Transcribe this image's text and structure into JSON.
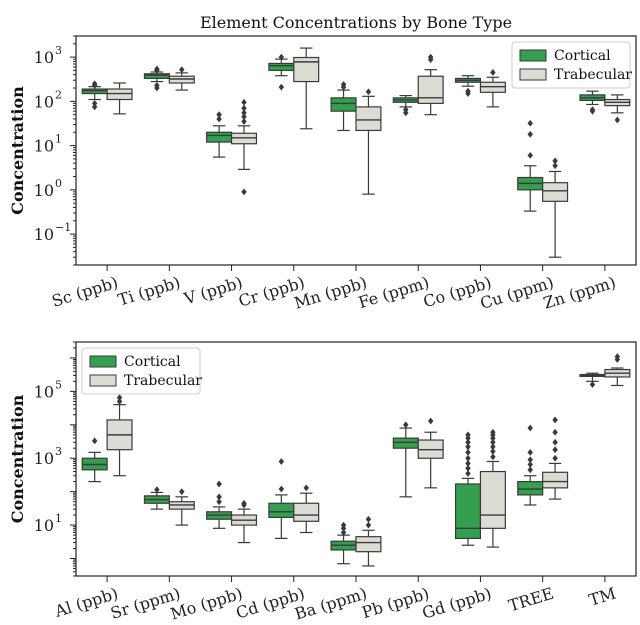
{
  "colors": {
    "cortical": "#34a04f",
    "trabecular": "#dcdcd5",
    "line": "#3a3a3a",
    "frame": "#222222"
  },
  "chart_data": [
    {
      "type": "box",
      "title": "Element Concentrations by Bone Type",
      "xlabel": "",
      "ylabel": "Concentration",
      "yscale": "log",
      "ylim": [
        0.02,
        3000
      ],
      "yticks": [
        {
          "value": 0.1,
          "base": "10",
          "exp": "−1"
        },
        {
          "value": 1,
          "base": "10",
          "exp": "0"
        },
        {
          "value": 10,
          "base": "10",
          "exp": "1"
        },
        {
          "value": 100,
          "base": "10",
          "exp": "2"
        },
        {
          "value": 1000,
          "base": "10",
          "exp": "3"
        }
      ],
      "legend": {
        "position": "top-right",
        "entries": [
          "Cortical",
          "Trabecular"
        ]
      },
      "categories": [
        "Sc (ppb)",
        "Ti (ppb)",
        "V (ppb)",
        "Cr (ppb)",
        "Mn (ppb)",
        "Fe (ppm)",
        "Co (ppb)",
        "Cu (ppm)",
        "Zn (ppm)"
      ],
      "series": [
        {
          "name": "Cortical",
          "boxes": [
            {
              "whislo": 110,
              "q1": 150,
              "med": 175,
              "q3": 190,
              "whishi": 215,
              "fliers": [
                75,
                90,
                230,
                250
              ]
            },
            {
              "whislo": 280,
              "q1": 330,
              "med": 390,
              "q3": 420,
              "whishi": 460,
              "fliers": [
                200,
                230,
                500,
                540
              ]
            },
            {
              "whislo": 5.5,
              "q1": 12,
              "med": 17,
              "q3": 20,
              "whishi": 28,
              "fliers": [
                40,
                50
              ]
            },
            {
              "whislo": 380,
              "q1": 500,
              "med": 640,
              "q3": 720,
              "whishi": 900,
              "fliers": [
                210,
                1000
              ]
            },
            {
              "whislo": 22,
              "q1": 60,
              "med": 90,
              "q3": 120,
              "whishi": 180,
              "fliers": [
                210,
                240
              ]
            },
            {
              "whislo": 75,
              "q1": 95,
              "med": 107,
              "q3": 120,
              "whishi": 135,
              "fliers": [
                55,
                65
              ]
            },
            {
              "whislo": 220,
              "q1": 270,
              "med": 300,
              "q3": 330,
              "whishi": 380,
              "fliers": [
                150,
                170
              ]
            },
            {
              "whislo": 0.33,
              "q1": 1.0,
              "med": 1.4,
              "q3": 1.9,
              "whishi": 3.5,
              "fliers": [
                6,
                18,
                32
              ]
            },
            {
              "whislo": 85,
              "q1": 105,
              "med": 120,
              "q3": 140,
              "whishi": 170,
              "fliers": [
                60,
                65
              ]
            }
          ]
        },
        {
          "name": "Trabecular",
          "boxes": [
            {
              "whislo": 52,
              "q1": 110,
              "med": 150,
              "q3": 190,
              "whishi": 260,
              "fliers": []
            },
            {
              "whislo": 180,
              "q1": 260,
              "med": 320,
              "q3": 370,
              "whishi": 440,
              "fliers": [
                520
              ]
            },
            {
              "whislo": 2.9,
              "q1": 11,
              "med": 15,
              "q3": 19,
              "whishi": 28,
              "fliers": [
                0.9,
                35,
                45,
                55,
                70,
                95
              ]
            },
            {
              "whislo": 24,
              "q1": 280,
              "med": 780,
              "q3": 980,
              "whishi": 1600,
              "fliers": []
            },
            {
              "whislo": 0.8,
              "q1": 22,
              "med": 38,
              "q3": 75,
              "whishi": 130,
              "fliers": [
                165
              ]
            },
            {
              "whislo": 50,
              "q1": 90,
              "med": 120,
              "q3": 370,
              "whishi": 520,
              "fliers": [
                880,
                1000
              ]
            },
            {
              "whislo": 75,
              "q1": 160,
              "med": 215,
              "q3": 270,
              "whishi": 350,
              "fliers": [
                450
              ]
            },
            {
              "whislo": 0.03,
              "q1": 0.55,
              "med": 0.95,
              "q3": 1.45,
              "whishi": 2.6,
              "fliers": [
                3.5,
                4.5
              ]
            },
            {
              "whislo": 55,
              "q1": 80,
              "med": 95,
              "q3": 110,
              "whishi": 140,
              "fliers": [
                38
              ]
            }
          ]
        }
      ]
    },
    {
      "type": "box",
      "title": "",
      "xlabel": "",
      "ylabel": "Concentration",
      "yscale": "log",
      "ylim": [
        0.3,
        3000000
      ],
      "yticks": [
        {
          "value": 10,
          "base": "10",
          "exp": "1"
        },
        {
          "value": 1000,
          "base": "10",
          "exp": "3"
        },
        {
          "value": 100000,
          "base": "10",
          "exp": "5"
        }
      ],
      "legend": {
        "position": "top-left",
        "entries": [
          "Cortical",
          "Trabecular"
        ]
      },
      "categories": [
        "Al (ppb)",
        "Sr (ppm)",
        "Mo (ppb)",
        "Cd (ppb)",
        "Ba (ppm)",
        "Pb (ppb)",
        "Gd (ppb)",
        "TREE",
        "TM"
      ],
      "series": [
        {
          "name": "Cortical",
          "boxes": [
            {
              "whislo": 200,
              "q1": 450,
              "med": 650,
              "q3": 1000,
              "whishi": 1500,
              "fliers": [
                3300
              ]
            },
            {
              "whislo": 30,
              "q1": 45,
              "med": 58,
              "q3": 75,
              "whishi": 95,
              "fliers": [
                115
              ]
            },
            {
              "whislo": 8,
              "q1": 15,
              "med": 20,
              "q3": 25,
              "whishi": 35,
              "fliers": [
                50,
                70,
                170
              ]
            },
            {
              "whislo": 4,
              "q1": 17,
              "med": 25,
              "q3": 45,
              "whishi": 80,
              "fliers": [
                120,
                800
              ]
            },
            {
              "whislo": 0.7,
              "q1": 1.8,
              "med": 2.5,
              "q3": 3.3,
              "whishi": 5,
              "fliers": [
                6,
                8,
                10
              ]
            },
            {
              "whislo": 70,
              "q1": 2000,
              "med": 3000,
              "q3": 4000,
              "whishi": 8000,
              "fliers": [
                10000
              ]
            },
            {
              "whislo": 2.5,
              "q1": 4,
              "med": 8,
              "q3": 170,
              "whishi": 250,
              "fliers": [
                350,
                500,
                700,
                1000,
                1500,
                2200,
                3000,
                4000,
                5000
              ]
            },
            {
              "whislo": 40,
              "q1": 80,
              "med": 120,
              "q3": 200,
              "whishi": 300,
              "fliers": [
                450,
                650,
                900,
                1500,
                8000
              ]
            },
            {
              "whislo": 200000,
              "q1": 280000,
              "med": 300000,
              "q3": 320000,
              "whishi": 350000,
              "fliers": [
                160000
              ]
            }
          ]
        },
        {
          "name": "Trabecular",
          "boxes": [
            {
              "whislo": 300,
              "q1": 1800,
              "med": 5000,
              "q3": 14000,
              "whishi": 40000,
              "fliers": [
                50000,
                65000
              ]
            },
            {
              "whislo": 10,
              "q1": 30,
              "med": 40,
              "q3": 50,
              "whishi": 70,
              "fliers": [
                100
              ]
            },
            {
              "whislo": 3,
              "q1": 10,
              "med": 14,
              "q3": 20,
              "whishi": 30,
              "fliers": [
                40,
                45
              ]
            },
            {
              "whislo": 6,
              "q1": 13,
              "med": 20,
              "q3": 45,
              "whishi": 90,
              "fliers": [
                130
              ]
            },
            {
              "whislo": 0.6,
              "q1": 1.6,
              "med": 3,
              "q3": 4.5,
              "whishi": 7,
              "fliers": [
                10,
                15
              ]
            },
            {
              "whislo": 130,
              "q1": 1000,
              "med": 1800,
              "q3": 3500,
              "whishi": 6000,
              "fliers": [
                13000
              ]
            },
            {
              "whislo": 2.2,
              "q1": 8,
              "med": 20,
              "q3": 400,
              "whishi": 800,
              "fliers": [
                1100,
                1600,
                2200,
                3000,
                4000,
                5000,
                6000
              ]
            },
            {
              "whislo": 60,
              "q1": 130,
              "med": 200,
              "q3": 380,
              "whishi": 700,
              "fliers": [
                1000,
                1800,
                3000,
                6000,
                14000
              ]
            },
            {
              "whislo": 150000,
              "q1": 270000,
              "med": 350000,
              "q3": 450000,
              "whishi": 500000,
              "fliers": [
                900000,
                1100000
              ]
            }
          ]
        }
      ]
    }
  ]
}
